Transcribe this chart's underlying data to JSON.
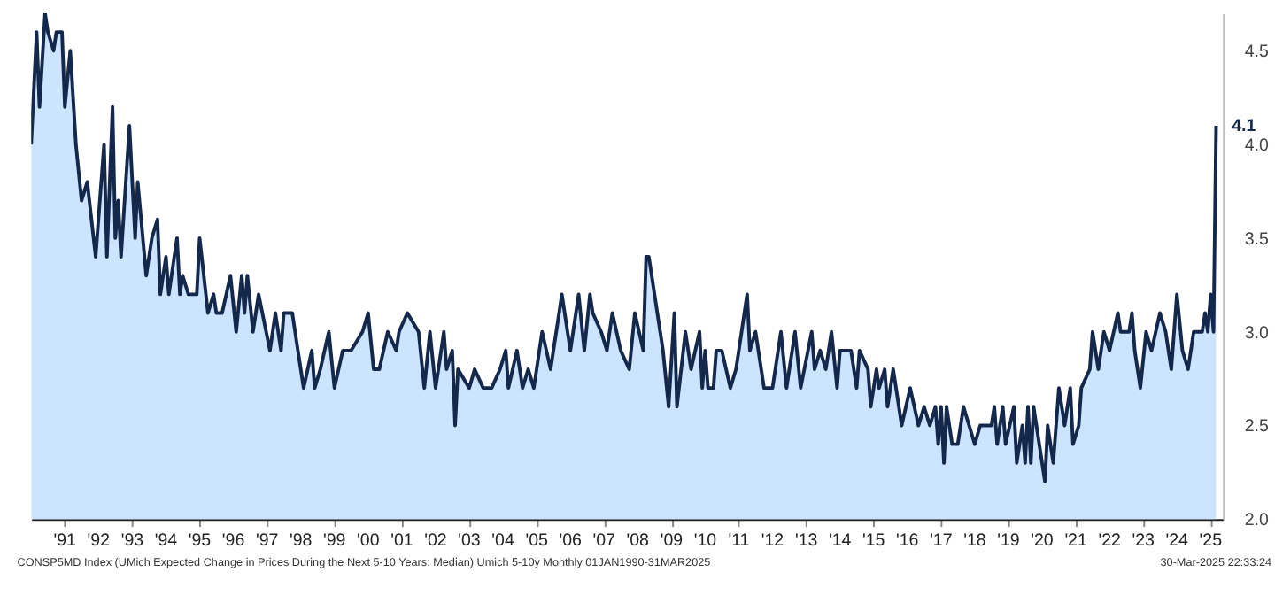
{
  "chart_data": {
    "type": "area",
    "x": [
      "1990-01",
      "1990-03",
      "1990-04",
      "1990-06",
      "1990-07",
      "1990-09",
      "1990-10",
      "1990-12",
      "1991-01",
      "1991-03",
      "1991-05",
      "1991-07",
      "1991-09",
      "1991-12",
      "1992-03",
      "1992-04",
      "1992-06",
      "1992-07",
      "1992-08",
      "1992-09",
      "1992-12",
      "1993-02",
      "1993-03",
      "1993-06",
      "1993-08",
      "1993-10",
      "1993-11",
      "1994-01",
      "1994-02",
      "1994-04",
      "1994-05",
      "1994-06",
      "1994-07",
      "1994-09",
      "1994-12",
      "1995-01",
      "1995-04",
      "1995-06",
      "1995-07",
      "1995-09",
      "1995-12",
      "1996-02",
      "1996-04",
      "1996-05",
      "1996-06",
      "1996-08",
      "1996-10",
      "1997-02",
      "1997-04",
      "1997-06",
      "1997-07",
      "1997-10",
      "1997-12",
      "1998-02",
      "1998-05",
      "1998-06",
      "1998-08",
      "1998-11",
      "1999-01",
      "1999-04",
      "1999-07",
      "1999-11",
      "2000-01",
      "2000-03",
      "2000-05",
      "2000-08",
      "2000-11",
      "2000-12",
      "2001-03",
      "2001-07",
      "2001-09",
      "2001-11",
      "2002-01",
      "2002-02",
      "2002-04",
      "2002-05",
      "2002-07",
      "2002-08",
      "2002-09",
      "2003-01",
      "2003-03",
      "2003-06",
      "2003-09",
      "2003-12",
      "2004-02",
      "2004-03",
      "2004-06",
      "2004-08",
      "2004-10",
      "2004-12",
      "2005-03",
      "2005-06",
      "2005-07",
      "2005-09",
      "2005-10",
      "2005-12",
      "2006-01",
      "2006-04",
      "2006-06",
      "2006-08",
      "2006-09",
      "2006-12",
      "2007-02",
      "2007-04",
      "2007-07",
      "2007-10",
      "2007-12",
      "2008-03",
      "2008-04",
      "2008-05",
      "2008-07",
      "2008-10",
      "2008-12",
      "2009-02",
      "2009-03",
      "2009-06",
      "2009-08",
      "2009-11",
      "2009-12",
      "2010-01",
      "2010-02",
      "2010-04",
      "2010-05",
      "2010-07",
      "2010-10",
      "2010-12",
      "2011-01",
      "2011-04",
      "2011-05",
      "2011-07",
      "2011-10",
      "2012-01",
      "2012-04",
      "2012-06",
      "2012-09",
      "2012-11",
      "2013-03",
      "2013-04",
      "2013-06",
      "2013-08",
      "2013-10",
      "2013-12",
      "2014-01",
      "2014-05",
      "2014-07",
      "2014-08",
      "2014-11",
      "2014-12",
      "2015-02",
      "2015-03",
      "2015-05",
      "2015-06",
      "2015-08",
      "2015-09",
      "2015-11",
      "2016-02",
      "2016-05",
      "2016-07",
      "2016-09",
      "2016-11",
      "2016-12",
      "2017-01",
      "2017-02",
      "2017-03",
      "2017-05",
      "2017-07",
      "2017-09",
      "2017-11",
      "2018-01",
      "2018-03",
      "2018-07",
      "2018-08",
      "2018-09",
      "2018-11",
      "2018-12",
      "2019-03",
      "2019-04",
      "2019-06",
      "2019-07",
      "2019-08",
      "2019-09",
      "2019-10",
      "2019-12",
      "2020-02",
      "2020-03",
      "2020-05",
      "2020-07",
      "2020-09",
      "2020-11",
      "2020-12",
      "2021-02",
      "2021-03",
      "2021-06",
      "2021-07",
      "2021-09",
      "2021-11",
      "2022-01",
      "2022-04",
      "2022-05",
      "2022-08",
      "2022-09",
      "2022-10",
      "2022-12",
      "2023-02",
      "2023-04",
      "2023-07",
      "2023-09",
      "2023-11",
      "2024-01",
      "2024-03",
      "2024-05",
      "2024-07",
      "2024-10",
      "2024-11",
      "2024-12",
      "2025-01",
      "2025-02",
      "2025-03"
    ],
    "series": [
      {
        "color": "#14284b",
        "values": [
          4.0,
          4.6,
          4.2,
          4.7,
          4.6,
          4.5,
          4.6,
          4.6,
          4.2,
          4.5,
          4.0,
          3.7,
          3.8,
          3.4,
          4.0,
          3.4,
          4.2,
          3.5,
          3.7,
          3.4,
          4.1,
          3.5,
          3.8,
          3.3,
          3.5,
          3.6,
          3.2,
          3.4,
          3.2,
          3.4,
          3.5,
          3.2,
          3.3,
          3.2,
          3.2,
          3.5,
          3.1,
          3.2,
          3.1,
          3.1,
          3.3,
          3.0,
          3.3,
          3.1,
          3.3,
          3.0,
          3.2,
          2.9,
          3.1,
          2.9,
          3.1,
          3.1,
          2.9,
          2.7,
          2.9,
          2.7,
          2.8,
          3.0,
          2.7,
          2.9,
          2.9,
          3.0,
          3.1,
          2.8,
          2.8,
          3.0,
          2.9,
          3.0,
          3.1,
          3.0,
          2.7,
          3.0,
          2.7,
          2.8,
          3.0,
          2.8,
          2.9,
          2.5,
          2.8,
          2.7,
          2.8,
          2.7,
          2.7,
          2.8,
          2.9,
          2.7,
          2.9,
          2.7,
          2.8,
          2.7,
          3.0,
          2.8,
          2.9,
          3.1,
          3.2,
          3.0,
          2.9,
          3.2,
          2.9,
          3.2,
          3.1,
          3.0,
          2.9,
          3.1,
          2.9,
          2.8,
          3.1,
          2.9,
          3.4,
          3.4,
          3.2,
          2.9,
          2.6,
          3.1,
          2.6,
          3.0,
          2.8,
          3.0,
          2.7,
          2.9,
          2.7,
          2.7,
          2.9,
          2.9,
          2.7,
          2.8,
          2.9,
          3.2,
          2.9,
          3.0,
          2.7,
          2.7,
          3.0,
          2.7,
          3.0,
          2.7,
          3.0,
          2.8,
          2.9,
          2.8,
          3.0,
          2.7,
          2.9,
          2.9,
          2.7,
          2.9,
          2.8,
          2.6,
          2.8,
          2.7,
          2.8,
          2.6,
          2.8,
          2.7,
          2.5,
          2.7,
          2.5,
          2.6,
          2.5,
          2.6,
          2.4,
          2.6,
          2.3,
          2.6,
          2.4,
          2.4,
          2.6,
          2.5,
          2.4,
          2.5,
          2.5,
          2.6,
          2.4,
          2.6,
          2.4,
          2.6,
          2.3,
          2.5,
          2.3,
          2.6,
          2.3,
          2.6,
          2.4,
          2.2,
          2.5,
          2.3,
          2.7,
          2.5,
          2.7,
          2.4,
          2.5,
          2.7,
          2.8,
          3.0,
          2.8,
          3.0,
          2.9,
          3.1,
          3.0,
          3.0,
          3.1,
          2.9,
          2.7,
          3.0,
          2.9,
          3.1,
          3.0,
          2.8,
          3.2,
          2.9,
          2.8,
          3.0,
          3.0,
          3.1,
          3.0,
          3.2,
          3.0,
          4.1
        ]
      }
    ],
    "xlim": [
      "1990-01",
      "2025-05-15"
    ],
    "xticks": [
      {
        "value": "1991",
        "label": "'91"
      },
      {
        "value": "1992",
        "label": "'92"
      },
      {
        "value": "1993",
        "label": "'93"
      },
      {
        "value": "1994",
        "label": "'94"
      },
      {
        "value": "1995",
        "label": "'95"
      },
      {
        "value": "1996",
        "label": "'96"
      },
      {
        "value": "1997",
        "label": "'97"
      },
      {
        "value": "1998",
        "label": "'98"
      },
      {
        "value": "1999",
        "label": "'99"
      },
      {
        "value": "2000",
        "label": "'00"
      },
      {
        "value": "2001",
        "label": "'01"
      },
      {
        "value": "2002",
        "label": "'02"
      },
      {
        "value": "2003",
        "label": "'03"
      },
      {
        "value": "2004",
        "label": "'04"
      },
      {
        "value": "2005",
        "label": "'05"
      },
      {
        "value": "2006",
        "label": "'06"
      },
      {
        "value": "2007",
        "label": "'07"
      },
      {
        "value": "2008",
        "label": "'08"
      },
      {
        "value": "2009",
        "label": "'09"
      },
      {
        "value": "2010",
        "label": "'10"
      },
      {
        "value": "2011",
        "label": "'11"
      },
      {
        "value": "2012",
        "label": "'12"
      },
      {
        "value": "2013",
        "label": "'13"
      },
      {
        "value": "2014",
        "label": "'14"
      },
      {
        "value": "2015",
        "label": "'15"
      },
      {
        "value": "2016",
        "label": "'16"
      },
      {
        "value": "2017",
        "label": "'17"
      },
      {
        "value": "2018",
        "label": "'18"
      },
      {
        "value": "2019",
        "label": "'19"
      },
      {
        "value": "2020",
        "label": "'20"
      },
      {
        "value": "2021",
        "label": "'21"
      },
      {
        "value": "2022",
        "label": "'22"
      },
      {
        "value": "2023",
        "label": "'23"
      },
      {
        "value": "2024",
        "label": "'24"
      },
      {
        "value": "2025",
        "label": "'25"
      }
    ],
    "ylim": [
      2.0,
      4.7
    ],
    "yticks": [
      {
        "value": 2.0,
        "label": "2.0"
      },
      {
        "value": 2.5,
        "label": "2.5"
      },
      {
        "value": 3.0,
        "label": "3.0"
      },
      {
        "value": 3.5,
        "label": "3.5"
      },
      {
        "value": 4.0,
        "label": "4.0"
      },
      {
        "value": 4.5,
        "label": "4.5"
      }
    ],
    "annotations": [
      "CONSP5MD Index (UMich Expected Change in Prices During the Next 5-10 Years: Median) Umich 5-10y  Monthly 01JAN1990-31MAR2025",
      "30-Mar-2025 22:33:24",
      {
        "text": "4.1",
        "x": "2025-03",
        "y": 4.1
      }
    ],
    "grid": false,
    "legend": false,
    "marker": "none",
    "line_style": "solid"
  }
}
